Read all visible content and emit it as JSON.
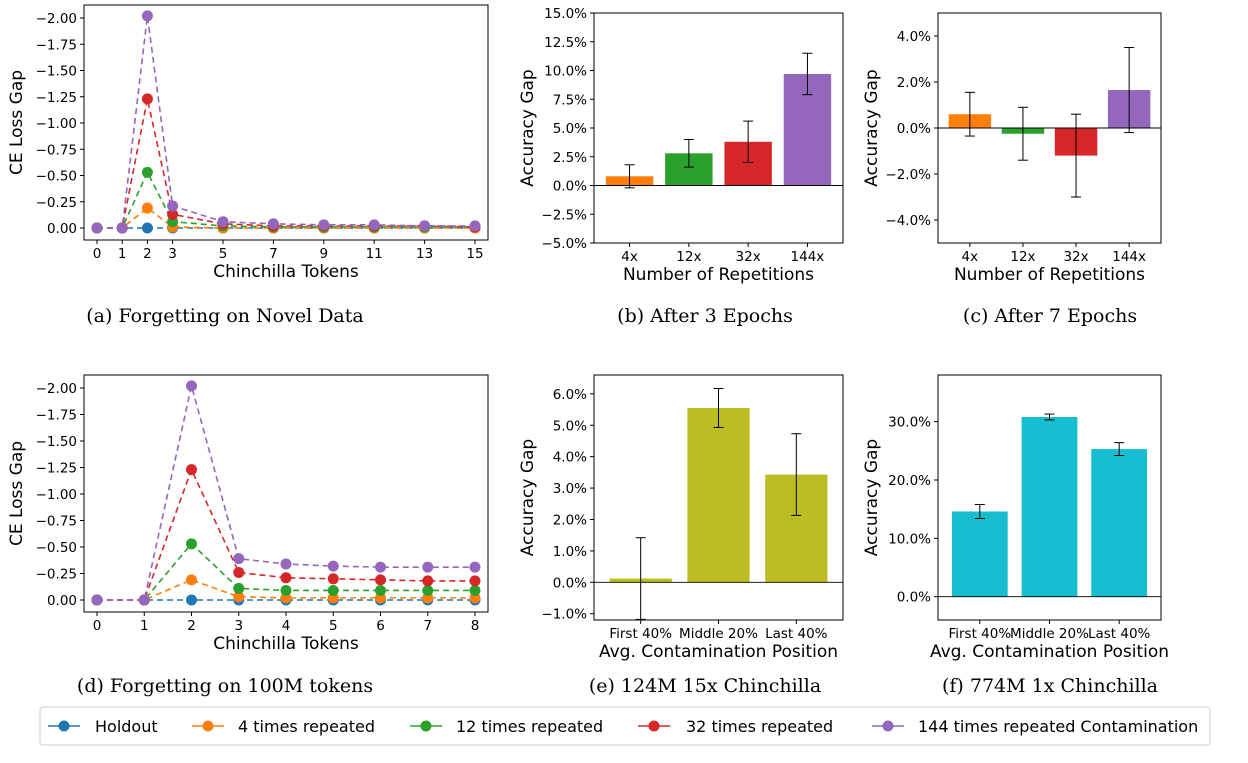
{
  "colors": {
    "holdout": "#1f77b4",
    "rep4": "#ff7f0e",
    "rep12": "#2ca02c",
    "rep32": "#d62728",
    "rep144": "#9467bd",
    "olive": "#bcbd22",
    "cyan": "#17becf"
  },
  "legend": {
    "entries": [
      {
        "label": "Holdout",
        "color": "#1f77b4"
      },
      {
        "label": "4 times repeated",
        "color": "#ff7f0e"
      },
      {
        "label": "12 times repeated",
        "color": "#2ca02c"
      },
      {
        "label": "32 times repeated",
        "color": "#d62728"
      },
      {
        "label": "144 times repeated Contamination",
        "color": "#9467bd"
      }
    ]
  },
  "chart_data": [
    {
      "type": "line",
      "caption": "(a) Forgetting on Novel Data",
      "xlabel": "Chinchilla Tokens",
      "ylabel": "CE Loss Gap",
      "y_inverted": true,
      "ylim": [
        0.0,
        -2.0
      ],
      "yticks": [
        "0.00",
        "−0.25",
        "−0.50",
        "−0.75",
        "−1.00",
        "−1.25",
        "−1.50",
        "−1.75",
        "−2.00"
      ],
      "ytick_values": [
        0,
        -0.25,
        -0.5,
        -0.75,
        -1.0,
        -1.25,
        -1.5,
        -1.75,
        -2.0
      ],
      "xticks": [
        "0",
        "1",
        "2",
        "3",
        "5",
        "7",
        "9",
        "11",
        "13",
        "15"
      ],
      "xtick_values": [
        0,
        1,
        2,
        3,
        5,
        7,
        9,
        11,
        13,
        15
      ],
      "x": [
        0,
        1,
        2,
        3,
        5,
        7,
        9,
        11,
        13,
        15
      ],
      "series": [
        {
          "name": "Holdout",
          "color": "#1f77b4",
          "values": [
            0,
            0,
            0,
            0,
            0,
            0,
            0,
            0,
            0,
            0
          ]
        },
        {
          "name": "4 times repeated",
          "color": "#ff7f0e",
          "values": [
            0,
            0,
            -0.19,
            -0.01,
            0,
            0,
            0,
            0,
            0,
            0
          ]
        },
        {
          "name": "12 times repeated",
          "color": "#2ca02c",
          "values": [
            0,
            0,
            -0.53,
            -0.06,
            -0.02,
            -0.01,
            -0.01,
            -0.01,
            -0.01,
            -0.01
          ]
        },
        {
          "name": "32 times repeated",
          "color": "#d62728",
          "values": [
            0,
            0,
            -1.23,
            -0.13,
            -0.04,
            -0.02,
            -0.02,
            -0.02,
            -0.02,
            -0.01
          ]
        },
        {
          "name": "144 times repeated Contamination",
          "color": "#9467bd",
          "values": [
            0,
            0,
            -2.02,
            -0.21,
            -0.06,
            -0.04,
            -0.03,
            -0.03,
            -0.02,
            -0.02
          ]
        }
      ]
    },
    {
      "type": "bar",
      "caption": "(b) After 3 Epochs",
      "xlabel": "Number of Repetitions",
      "ylabel": "Accuracy Gap",
      "ylim": [
        -5.0,
        15.0
      ],
      "yticks": [
        "−5.0%",
        "−2.5%",
        "0.0%",
        "2.5%",
        "5.0%",
        "7.5%",
        "10.0%",
        "12.5%",
        "15.0%"
      ],
      "ytick_values": [
        -5,
        -2.5,
        0,
        2.5,
        5,
        7.5,
        10,
        12.5,
        15
      ],
      "categories": [
        "4x",
        "12x",
        "32x",
        "144x"
      ],
      "values": [
        0.8,
        2.8,
        3.8,
        9.7
      ],
      "errors": [
        1.0,
        1.2,
        1.8,
        1.8
      ],
      "colors": [
        "#ff7f0e",
        "#2ca02c",
        "#d62728",
        "#9467bd"
      ]
    },
    {
      "type": "bar",
      "caption": "(c) After 7 Epochs",
      "xlabel": "Number of Repetitions",
      "ylabel": "Accuracy Gap",
      "ylim": [
        -5.0,
        5.0
      ],
      "yticks": [
        "−4.0%",
        "−2.0%",
        "0.0%",
        "2.0%",
        "4.0%"
      ],
      "ytick_values": [
        -4,
        -2,
        0,
        2,
        4
      ],
      "categories": [
        "4x",
        "12x",
        "32x",
        "144x"
      ],
      "values": [
        0.6,
        -0.25,
        -1.2,
        1.65
      ],
      "errors": [
        0.95,
        1.15,
        1.8,
        1.85
      ],
      "colors": [
        "#ff7f0e",
        "#2ca02c",
        "#d62728",
        "#9467bd"
      ]
    },
    {
      "type": "line",
      "caption": "(d) Forgetting on 100M tokens",
      "xlabel": "Chinchilla Tokens",
      "ylabel": "CE Loss Gap",
      "y_inverted": true,
      "ylim": [
        0.0,
        -2.0
      ],
      "yticks": [
        "0.00",
        "−0.25",
        "−0.50",
        "−0.75",
        "−1.00",
        "−1.25",
        "−1.50",
        "−1.75",
        "−2.00"
      ],
      "ytick_values": [
        0,
        -0.25,
        -0.5,
        -0.75,
        -1.0,
        -1.25,
        -1.5,
        -1.75,
        -2.0
      ],
      "xticks": [
        "0",
        "1",
        "2",
        "3",
        "4",
        "5",
        "6",
        "7",
        "8"
      ],
      "xtick_values": [
        0,
        1,
        2,
        3,
        4,
        5,
        6,
        7,
        8
      ],
      "x": [
        0,
        1,
        2,
        3,
        4,
        5,
        6,
        7,
        8
      ],
      "series": [
        {
          "name": "Holdout",
          "color": "#1f77b4",
          "values": [
            0,
            0,
            0,
            0,
            0,
            0,
            0,
            0,
            0
          ]
        },
        {
          "name": "4 times repeated",
          "color": "#ff7f0e",
          "values": [
            0,
            0,
            -0.19,
            -0.03,
            -0.02,
            -0.02,
            -0.02,
            -0.02,
            -0.02
          ]
        },
        {
          "name": "12 times repeated",
          "color": "#2ca02c",
          "values": [
            0,
            0,
            -0.53,
            -0.11,
            -0.09,
            -0.09,
            -0.09,
            -0.09,
            -0.09
          ]
        },
        {
          "name": "32 times repeated",
          "color": "#d62728",
          "values": [
            0,
            0,
            -1.23,
            -0.26,
            -0.21,
            -0.2,
            -0.19,
            -0.18,
            -0.18
          ]
        },
        {
          "name": "144 times repeated Contamination",
          "color": "#9467bd",
          "values": [
            0,
            0,
            -2.02,
            -0.39,
            -0.34,
            -0.32,
            -0.31,
            -0.31,
            -0.31
          ]
        }
      ]
    },
    {
      "type": "bar",
      "caption": "(e) 124M 15x Chinchilla",
      "xlabel": "Avg. Contamination Position",
      "ylabel": "Accuracy Gap",
      "ylim": [
        -1.2,
        6.6
      ],
      "yticks": [
        "−1.0%",
        "0.0%",
        "1.0%",
        "2.0%",
        "3.0%",
        "4.0%",
        "5.0%",
        "6.0%"
      ],
      "ytick_values": [
        -1,
        0,
        1,
        2,
        3,
        4,
        5,
        6
      ],
      "categories": [
        "First 40%",
        "Middle 20%",
        "Last 40%"
      ],
      "values": [
        0.12,
        5.55,
        3.43
      ],
      "errors": [
        1.3,
        0.62,
        1.3
      ],
      "colors": [
        "#bcbd22",
        "#bcbd22",
        "#bcbd22"
      ]
    },
    {
      "type": "bar",
      "caption": "(f) 774M 1x Chinchilla",
      "xlabel": "Avg. Contamination Position",
      "ylabel": "Accuracy Gap",
      "ylim": [
        -4.0,
        38.0
      ],
      "yticks": [
        "0.0%",
        "10.0%",
        "20.0%",
        "30.0%"
      ],
      "ytick_values": [
        0,
        10,
        20,
        30
      ],
      "categories": [
        "First 40%",
        "Middle 20%",
        "Last 40%"
      ],
      "values": [
        14.6,
        30.8,
        25.3
      ],
      "errors": [
        1.2,
        0.5,
        1.1
      ],
      "colors": [
        "#17becf",
        "#17becf",
        "#17becf"
      ]
    }
  ]
}
